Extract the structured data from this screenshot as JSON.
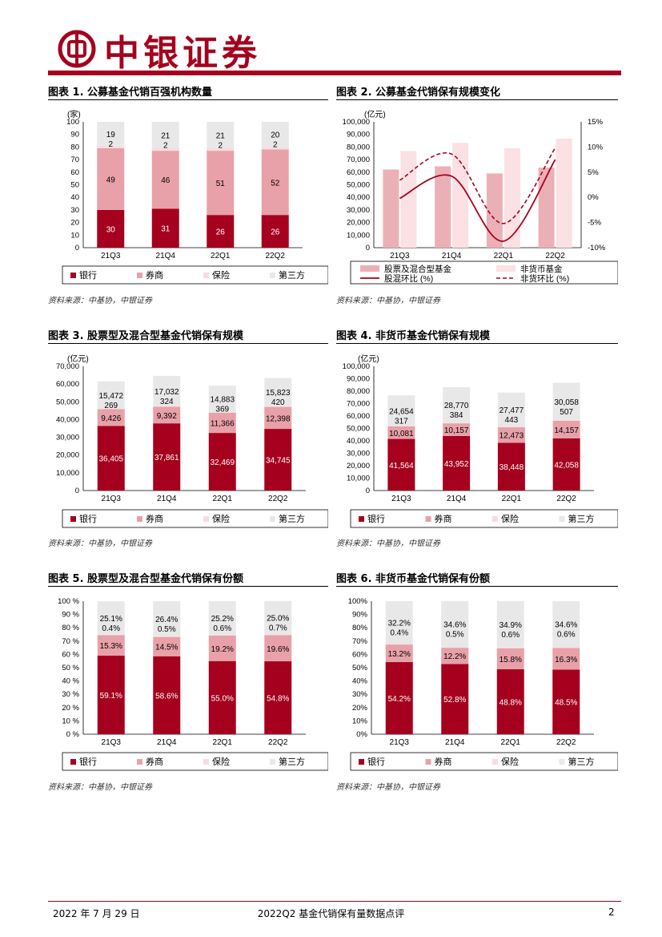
{
  "header": {
    "brand": "中银证券"
  },
  "colors": {
    "bank": "#a5001e",
    "broker": "#e8a1a8",
    "insurance": "#f7dcdf",
    "third": "#e8e8e8",
    "brand_red": "#a5001e"
  },
  "footer": {
    "date": "2022 年 7 月 29 日",
    "title": "2022Q2 基金代销保有量数据点评",
    "page": "2"
  },
  "panels": [
    {
      "title": "图表 1. 公募基金代销百强机构数量",
      "source": "资料来源：中基协，中银证券",
      "chart_data": {
        "type": "bar",
        "stacked": true,
        "unit": "(家)",
        "categories": [
          "21Q3",
          "21Q4",
          "22Q1",
          "22Q2"
        ],
        "ylim": [
          0,
          100
        ],
        "yticks": [
          "0",
          "10",
          "20",
          "30",
          "40",
          "50",
          "60",
          "70",
          "80",
          "90",
          "100"
        ],
        "series": [
          {
            "name": "银行",
            "values": [
              30,
              31,
              26,
              26
            ],
            "labels": [
              "30",
              "31",
              "26",
              "26"
            ]
          },
          {
            "name": "券商",
            "values": [
              49,
              46,
              51,
              52
            ],
            "labels": [
              "49",
              "46",
              "51",
              "52"
            ]
          },
          {
            "name": "保险",
            "values": [
              2,
              2,
              2,
              2
            ],
            "labels": [
              "2",
              "2",
              "2",
              "2"
            ]
          },
          {
            "name": "第三方",
            "values": [
              19,
              21,
              21,
              20
            ],
            "labels": [
              "19",
              "21",
              "21",
              "20"
            ]
          }
        ],
        "legend": "bottom"
      }
    },
    {
      "title": "图表 2. 公募基金代销保有规模变化",
      "source": "资料来源：中基协，中银证券",
      "chart_data": {
        "type": "bar",
        "unit": "(亿元)",
        "categories": [
          "21Q3",
          "21Q4",
          "22Q1",
          "22Q2"
        ],
        "ylim": [
          0,
          100000
        ],
        "yticks": [
          "0",
          "10,000",
          "20,000",
          "30,000",
          "40,000",
          "50,000",
          "60,000",
          "70,000",
          "80,000",
          "90,000",
          "100,000"
        ],
        "y2lim": [
          -10,
          15
        ],
        "y2ticks": [
          "-10%",
          "-5%",
          "0%",
          "5%",
          "10%",
          "15%"
        ],
        "series": [
          {
            "name": "股票及混合型基金",
            "values": [
              62100,
              64600,
              59000,
              63600
            ]
          },
          {
            "name": "非货币基金",
            "values": [
              76800,
              83300,
              79100,
              86700
            ]
          },
          {
            "name": "股混环比 (%)",
            "values": [
              -0.2,
              4.2,
              -8.7,
              7.5
            ]
          },
          {
            "name": "非货环比 (%)",
            "values": [
              3.4,
              8.6,
              -5.2,
              9.8
            ]
          }
        ],
        "legend": "bottom"
      }
    },
    {
      "title": "图表 3. 股票型及混合型基金代销保有规模",
      "source": "资料来源：中基协，中银证券",
      "chart_data": {
        "type": "bar",
        "stacked": true,
        "unit": "(亿元)",
        "categories": [
          "21Q3",
          "21Q4",
          "22Q1",
          "22Q2"
        ],
        "ylim": [
          0,
          70000
        ],
        "yticks": [
          "0",
          "10000",
          "20000",
          "30000",
          "40000",
          "50000",
          "60000",
          "70000"
        ],
        "tick_labels": [
          "0",
          "10,000",
          "20,000",
          "30,000",
          "40,000",
          "50,000",
          "60,000",
          "70,000"
        ],
        "series": [
          {
            "name": "银行",
            "values": [
              36405,
              37861,
              32469,
              34745
            ],
            "labels": [
              "36,405",
              "37,861",
              "32,469",
              "34,745"
            ]
          },
          {
            "name": "券商",
            "values": [
              9426,
              9392,
              11366,
              12398
            ],
            "labels": [
              "9,426",
              "9,392",
              "11,366",
              "12,398"
            ]
          },
          {
            "name": "保险",
            "values": [
              269,
              324,
              369,
              420
            ],
            "labels": [
              "269",
              "324",
              "369",
              "420"
            ]
          },
          {
            "name": "第三方",
            "values": [
              15472,
              17032,
              14883,
              15823
            ],
            "labels": [
              "15,472",
              "17,032",
              "14,883",
              "15,823"
            ]
          }
        ],
        "legend": "bottom"
      }
    },
    {
      "title": "图表 4. 非货币基金代销保有规模",
      "source": "资料来源：中基协，中银证券",
      "chart_data": {
        "type": "bar",
        "stacked": true,
        "unit": "(亿元)",
        "categories": [
          "21Q3",
          "21Q4",
          "22Q1",
          "22Q2"
        ],
        "ylim": [
          0,
          100000
        ],
        "yticks": [
          "0",
          "10000",
          "20000",
          "30000",
          "40000",
          "50000",
          "60000",
          "70000",
          "80000",
          "90000",
          "100000"
        ],
        "tick_labels": [
          "0",
          "10,000",
          "20,000",
          "30,000",
          "40,000",
          "50,000",
          "60,000",
          "70,000",
          "80,000",
          "90,000",
          "100,000"
        ],
        "series": [
          {
            "name": "银行",
            "values": [
              41564,
              43952,
              38448,
              42058
            ],
            "labels": [
              "41,564",
              "43,952",
              "38,448",
              "42,058"
            ]
          },
          {
            "name": "券商",
            "values": [
              10081,
              10157,
              12473,
              14157
            ],
            "labels": [
              "10,081",
              "10,157",
              "12,473",
              "14,157"
            ]
          },
          {
            "name": "保险",
            "values": [
              317,
              384,
              443,
              507
            ],
            "labels": [
              "317",
              "384",
              "443",
              "507"
            ]
          },
          {
            "name": "第三方",
            "values": [
              24654,
              28770,
              27477,
              30058
            ],
            "labels": [
              "24,654",
              "28,770",
              "27,477",
              "30,058"
            ]
          }
        ],
        "legend": "bottom"
      }
    },
    {
      "title": "图表 5. 股票型及混合型基金代销保有份额",
      "source": "资料来源：中基协，中银证券",
      "chart_data": {
        "type": "bar",
        "stacked": true,
        "categories": [
          "21Q3",
          "21Q4",
          "22Q1",
          "22Q2"
        ],
        "ylim": [
          0,
          100
        ],
        "yticks": [
          "0",
          "10",
          "20",
          "30",
          "40",
          "50",
          "60",
          "70",
          "80",
          "90",
          "100"
        ],
        "tick_labels": [
          "0 %",
          "10 %",
          "20 %",
          "30 %",
          "40 %",
          "50 %",
          "60 %",
          "70 %",
          "80 %",
          "90 %",
          "100 %"
        ],
        "series": [
          {
            "name": "银行",
            "values": [
              59.1,
              58.6,
              55.0,
              54.8
            ],
            "labels": [
              "59.1%",
              "58.6%",
              "55.0%",
              "54.8%"
            ]
          },
          {
            "name": "券商",
            "values": [
              15.3,
              14.5,
              19.2,
              19.6
            ],
            "labels": [
              "15.3%",
              "14.5%",
              "19.2%",
              "19.6%"
            ]
          },
          {
            "name": "保险",
            "values": [
              0.4,
              0.5,
              0.6,
              0.7
            ],
            "labels": [
              "0.4%",
              "0.5%",
              "0.6%",
              "0.7%"
            ]
          },
          {
            "name": "第三方",
            "values": [
              25.1,
              26.4,
              25.2,
              25.0
            ],
            "labels": [
              "25.1%",
              "26.4%",
              "25.2%",
              "25.0%"
            ]
          }
        ],
        "legend": "bottom"
      }
    },
    {
      "title": "图表 6. 非货币基金代销保有份额",
      "source": "资料来源：中基协，中银证券",
      "chart_data": {
        "type": "bar",
        "stacked": true,
        "categories": [
          "21Q3",
          "21Q4",
          "22Q1",
          "22Q2"
        ],
        "ylim": [
          0,
          100
        ],
        "yticks": [
          "0",
          "10",
          "20",
          "30",
          "40",
          "50",
          "60",
          "70",
          "80",
          "90",
          "100"
        ],
        "tick_labels": [
          "0%",
          "10%",
          "20%",
          "30%",
          "40%",
          "50%",
          "60%",
          "70%",
          "80%",
          "90%",
          "100%"
        ],
        "series": [
          {
            "name": "银行",
            "values": [
              54.2,
              52.8,
              48.8,
              48.5
            ],
            "labels": [
              "54.2%",
              "52.8%",
              "48.8%",
              "48.5%"
            ]
          },
          {
            "name": "券商",
            "values": [
              13.2,
              12.2,
              15.8,
              16.3
            ],
            "labels": [
              "13.2%",
              "12.2%",
              "15.8%",
              "16.3%"
            ]
          },
          {
            "name": "保险",
            "values": [
              0.4,
              0.5,
              0.6,
              0.6
            ],
            "labels": [
              "0.4%",
              "0.5%",
              "0.6%",
              "0.6%"
            ]
          },
          {
            "name": "第三方",
            "values": [
              32.2,
              34.6,
              34.9,
              34.6
            ],
            "labels": [
              "32.2%",
              "34.6%",
              "34.9%",
              "34.6%"
            ]
          }
        ],
        "legend": "bottom"
      }
    }
  ]
}
